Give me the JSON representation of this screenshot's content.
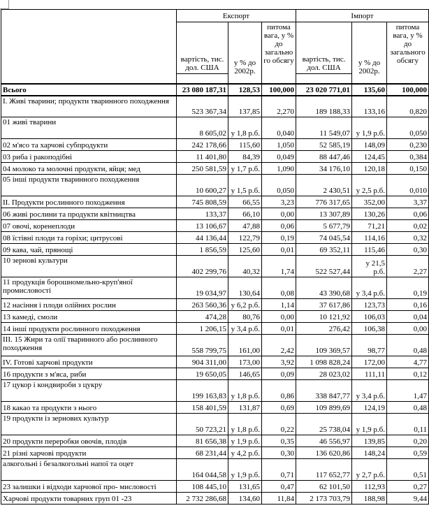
{
  "sheet": {
    "sections": [
      {
        "label": "Експорт"
      },
      {
        "label": "Імпорт"
      }
    ],
    "sub_headers": {
      "value": "вартість, тис. дол. США",
      "pct": "у % до 2002р.",
      "share": "питома вага, у % до загального обсягу"
    },
    "rows": [
      {
        "style": "total",
        "label": "Всього",
        "values": [
          "23 080 187,31",
          "128,53",
          "100,000",
          "23 020 771,01",
          "135,60",
          "100,000"
        ]
      },
      {
        "style": "tall",
        "label": "I. Живі тварини; продукти тваринного походження",
        "values": [
          "523 367,34",
          "137,85",
          "2,270",
          "189 188,33",
          "133,16",
          "0,820"
        ]
      },
      {
        "style": "tall",
        "label": "01 живі тварини",
        "values": [
          "8 605,02",
          "у 1,8 р.б.",
          "0,040",
          "11 549,07",
          "у 1,9 р.б.",
          "0,050"
        ]
      },
      {
        "style": "normal",
        "label": "02 м'ясо та харчові субпродукти",
        "values": [
          "242 178,66",
          "115,60",
          "1,050",
          "52 585,19",
          "148,09",
          "0,230"
        ]
      },
      {
        "style": "normal",
        "label": "03 риба і ракоподібні",
        "values": [
          "11 401,80",
          "84,39",
          "0,049",
          "88 447,46",
          "124,45",
          "0,384"
        ]
      },
      {
        "style": "normal",
        "label": "04 молоко та молочні продукти, яйця; мед",
        "values": [
          "250 581,59",
          "у 1,7 р.б.",
          "1,090",
          "34 176,10",
          "120,18",
          "0,150"
        ]
      },
      {
        "style": "tall",
        "label": "05 інші продукти тваринного походження",
        "values": [
          "10 600,27",
          "у 1,5 р.б.",
          "0,050",
          "2 430,51",
          "у 2,5 р.б.",
          "0,010"
        ]
      },
      {
        "style": "normal",
        "label": "II. Продукти рослинного походження",
        "values": [
          "745 808,59",
          "66,55",
          "3,23",
          "776 317,65",
          "352,00",
          "3,37"
        ]
      },
      {
        "style": "normal",
        "label": "06 живі рослини та продукти квітництва",
        "values": [
          "133,37",
          "66,10",
          "0,00",
          "13 307,89",
          "130,26",
          "0,06"
        ]
      },
      {
        "style": "normal",
        "label": "07 овочі, коренеплоди",
        "values": [
          "13 106,67",
          "47,88",
          "0,06",
          "5 677,79",
          "71,21",
          "0,02"
        ]
      },
      {
        "style": "normal",
        "label": "08 їстівні плоди та горіхи; цитрусові",
        "values": [
          "44 136,44",
          "122,79",
          "0,19",
          "74 045,54",
          "114,16",
          "0,32"
        ]
      },
      {
        "style": "normal",
        "label": "09 кава, чай, прянощі",
        "values": [
          "1 856,59",
          "125,60",
          "0,01",
          "69 352,11",
          "115,46",
          "0,30"
        ]
      },
      {
        "style": "tall",
        "label": "10 зернові культури",
        "values": [
          "402 299,76",
          "40,32",
          "1,74",
          "522 527,44",
          "у 21,5 р.б.",
          "2,27"
        ]
      },
      {
        "style": "tall",
        "label": "11 продукція борошномельно-круп'яної промисловості",
        "values": [
          "19 034,97",
          "130,64",
          "0,08",
          "43 390,68",
          "у 3,4 р.б.",
          "0,19"
        ]
      },
      {
        "style": "normal",
        "label": "12 насіння і плоди олійних рослин",
        "values": [
          "263 560,36",
          "у 6,2 р.б.",
          "1,14",
          "37 617,86",
          "123,73",
          "0,16"
        ]
      },
      {
        "style": "normal",
        "label": "13 камеді, смоли",
        "values": [
          "474,28",
          "80,76",
          "0,00",
          "10 121,92",
          "106,03",
          "0,04"
        ]
      },
      {
        "style": "normal",
        "label": "14 інші продукти рослинного походження",
        "values": [
          "1 206,15",
          "у 3,4 р.б.",
          "0,01",
          "276,42",
          "106,38",
          "0,00"
        ]
      },
      {
        "style": "tall",
        "label": "III. 15 Жири та олії тваринного або рослинного походження",
        "values": [
          "558 799,75",
          "161,00",
          "2,42",
          "109 369,57",
          "98,77",
          "0,48"
        ]
      },
      {
        "style": "normal",
        "label": "IV. Готові харчові продукти",
        "values": [
          "904 311,00",
          "173,00",
          "3,92",
          "1 098 828,24",
          "172,00",
          "4,77"
        ]
      },
      {
        "style": "normal",
        "label": "16 продукти з м'яса, риби",
        "values": [
          "19 650,05",
          "146,65",
          "0,09",
          "28 023,02",
          "111,11",
          "0,12"
        ]
      },
      {
        "style": "tall",
        "label": "17 цукор і кондвироби з цукру",
        "values": [
          "199 163,83",
          "у 1,8 р.б.",
          "0,86",
          "338 847,77",
          "у 3,4 р.б.",
          "1,47"
        ]
      },
      {
        "style": "normal",
        "label": "18 какао та продукти з нього",
        "values": [
          "158 401,59",
          "131,87",
          "0,69",
          "109 899,69",
          "124,19",
          "0,48"
        ]
      },
      {
        "style": "tall",
        "label": "19 продукти із зернових культур",
        "values": [
          "50 723,21",
          "у 1,8 р.б.",
          "0,22",
          "25 738,04",
          "у 1,9 р.б.",
          "0,11"
        ]
      },
      {
        "style": "normal",
        "label": "20 продукти переробки овочів, плодів",
        "values": [
          "81 656,38",
          "у 1,9 р.б.",
          "0,35",
          "46 556,97",
          "139,85",
          "0,20"
        ]
      },
      {
        "style": "normal",
        "label": "21 різні харчові продукти",
        "values": [
          "68 231,44",
          "у 4,2 р.б.",
          "0,30",
          "136 620,86",
          "148,24",
          "0,59"
        ]
      },
      {
        "style": "tall",
        "label": "алкогольні і безалкогольні напої та оцет",
        "values": [
          "164 044,58",
          "у 1,9 р.б.",
          "0,71",
          "117 652,77",
          "у 2,7 р.б.",
          "0,51"
        ]
      },
      {
        "style": "normal",
        "label": "23 залишки і відходи харчової про- мисловості",
        "values": [
          "108 445,10",
          "131,65",
          "0,47",
          "62 101,50",
          "112,93",
          "0,27"
        ]
      },
      {
        "style": "normal",
        "label": "Харчові продукти товарних груп 01 -23",
        "values": [
          "2 732 286,68",
          "134,60",
          "11,84",
          "2 173 703,79",
          "188,98",
          "9,44"
        ]
      }
    ]
  }
}
